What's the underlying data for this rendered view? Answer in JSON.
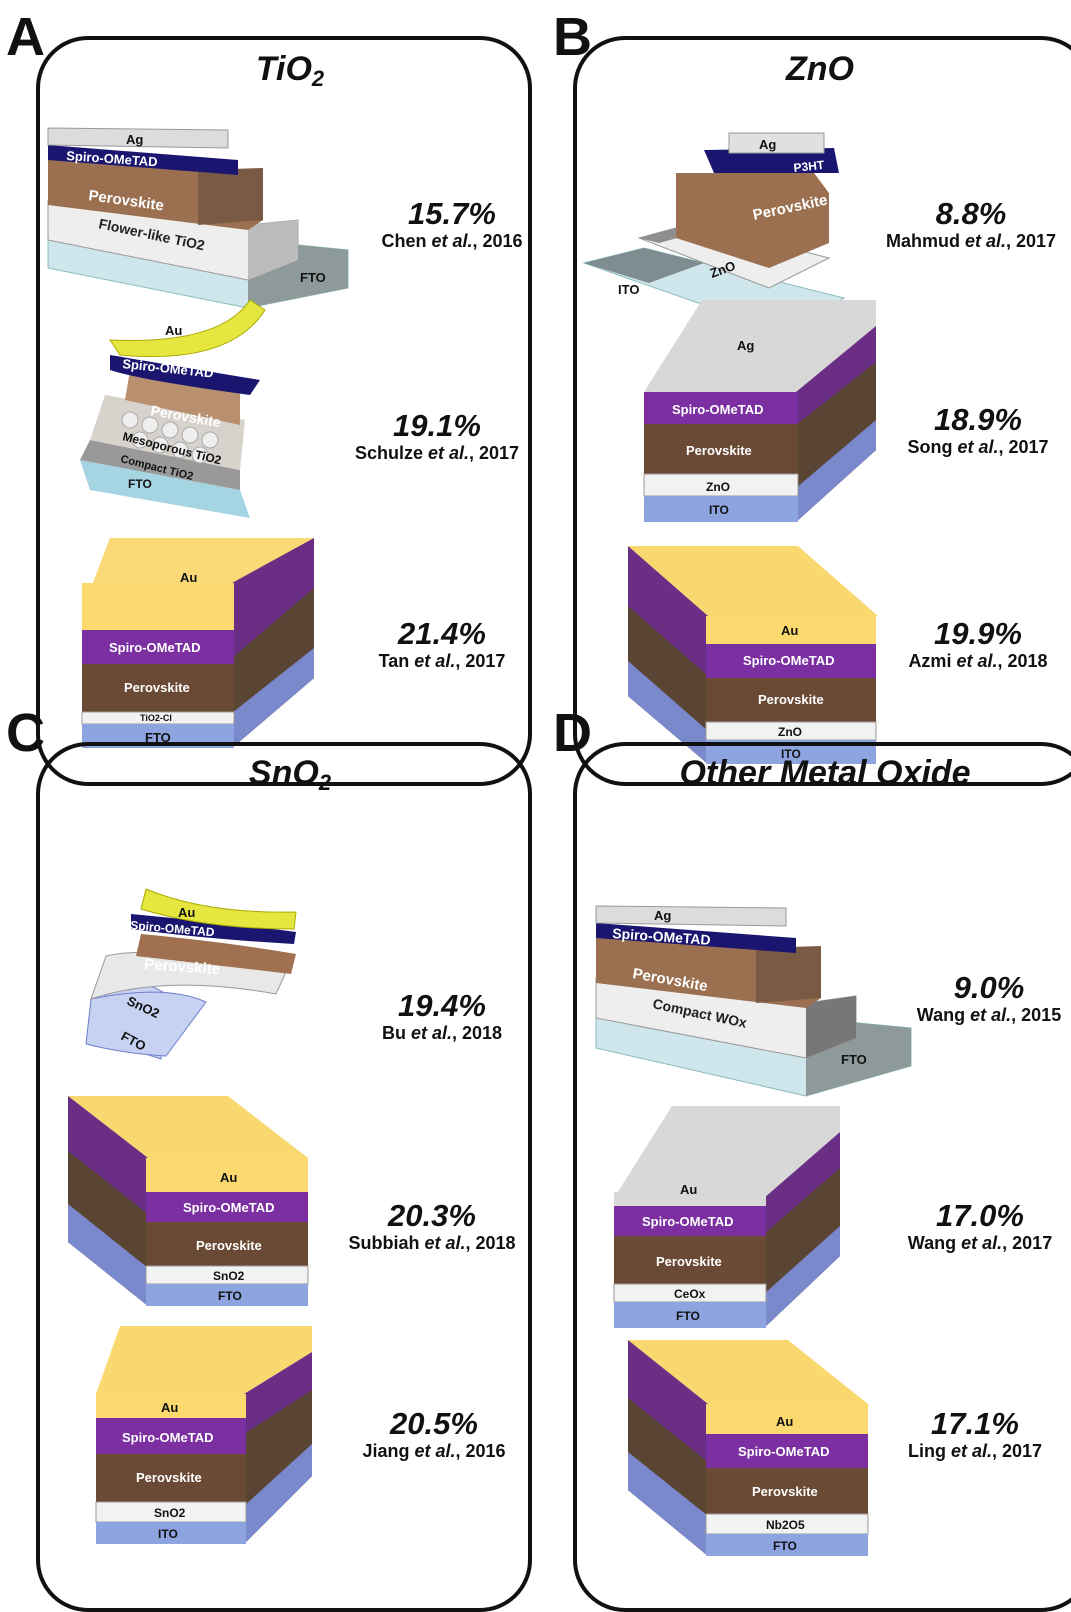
{
  "panels": [
    {
      "letter": "A",
      "title": "TiO",
      "title_sub": "2",
      "entries": [
        {
          "pct": "15.7%",
          "author": "Chen",
          "etal": "et al.",
          "year": ", 2016",
          "layers": [
            "Ag",
            "Spiro-OMeTAD",
            "Perovskite",
            "Flower-like TiO2",
            "FTO"
          ]
        },
        {
          "pct": "19.1%",
          "author": "Schulze",
          "etal": "et al.",
          "year": ", 2017",
          "layers": [
            "Au",
            "Spiro-OMeTAD",
            "Perovskite",
            "Mesoporous TiO2",
            "Compact TiO2",
            "FTO"
          ]
        },
        {
          "pct": "21.4%",
          "author": "Tan",
          "etal": "et al.",
          "year": ", 2017",
          "layers": [
            "Au",
            "Spiro-OMeTAD",
            "Perovskite",
            "TiO2-Cl",
            "FTO"
          ]
        }
      ]
    },
    {
      "letter": "B",
      "title": "ZnO",
      "title_sub": "",
      "entries": [
        {
          "pct": "8.8%",
          "author": "Mahmud",
          "etal": "et al.",
          "year": ", 2017",
          "layers": [
            "Ag",
            "P3HT",
            "Perovskite",
            "ZnO",
            "ITO"
          ]
        },
        {
          "pct": "18.9%",
          "author": "Song",
          "etal": "et al.",
          "year": ", 2017",
          "layers": [
            "Ag",
            "Spiro-OMeTAD",
            "Perovskite",
            "ZnO",
            "ITO"
          ]
        },
        {
          "pct": "19.9%",
          "author": "Azmi",
          "etal": "et al.",
          "year": ", 2018",
          "layers": [
            "Au",
            "Spiro-OMeTAD",
            "Perovskite",
            "ZnO",
            "ITO"
          ]
        }
      ]
    },
    {
      "letter": "C",
      "title": "SnO",
      "title_sub": "2",
      "entries": [
        {
          "pct": "19.4%",
          "author": "Bu",
          "etal": "et al.",
          "year": ", 2018",
          "layers": [
            "Au",
            "Spiro-OMeTAD",
            "Perovskite",
            "SnO2",
            "FTO"
          ]
        },
        {
          "pct": "20.3%",
          "author": "Subbiah",
          "etal": "et al.",
          "year": ", 2018",
          "layers": [
            "Au",
            "Spiro-OMeTAD",
            "Perovskite",
            "SnO2",
            "FTO"
          ]
        },
        {
          "pct": "20.5%",
          "author": "Jiang",
          "etal": "et al.",
          "year": ", 2016",
          "layers": [
            "Au",
            "Spiro-OMeTAD",
            "Perovskite",
            "SnO2",
            "ITO"
          ]
        }
      ]
    },
    {
      "letter": "D",
      "title": "Other Metal Oxide",
      "title_sub": "",
      "entries": [
        {
          "pct": "9.0%",
          "author": "Wang",
          "etal": "et al.",
          "year": ", 2015",
          "layers": [
            "Ag",
            "Spiro-OMeTAD",
            "Perovskite",
            "Compact WOx",
            "FTO"
          ]
        },
        {
          "pct": "17.0%",
          "author": "Wang",
          "etal": "et al.",
          "year": ", 2017",
          "layers": [
            "Au",
            "Spiro-OMeTAD",
            "Perovskite",
            "CeOx",
            "FTO"
          ]
        },
        {
          "pct": "17.1%",
          "author": "Ling",
          "etal": "et al.",
          "year": ", 2017",
          "layers": [
            "Au",
            "Spiro-OMeTAD",
            "Perovskite",
            "Nb2O5",
            "FTO"
          ]
        }
      ]
    }
  ],
  "colors": {
    "au": "#fbd96e",
    "ag": "#d8d8d8",
    "spiro": "#7b2fa0",
    "spiro_dark": "#1a1670",
    "perovskite": "#6b4a35",
    "etl": "#f2f2f2",
    "tco": "#8ea4e0",
    "tco_glass": "#c9e3ea",
    "p3ht": "#1a1670"
  }
}
